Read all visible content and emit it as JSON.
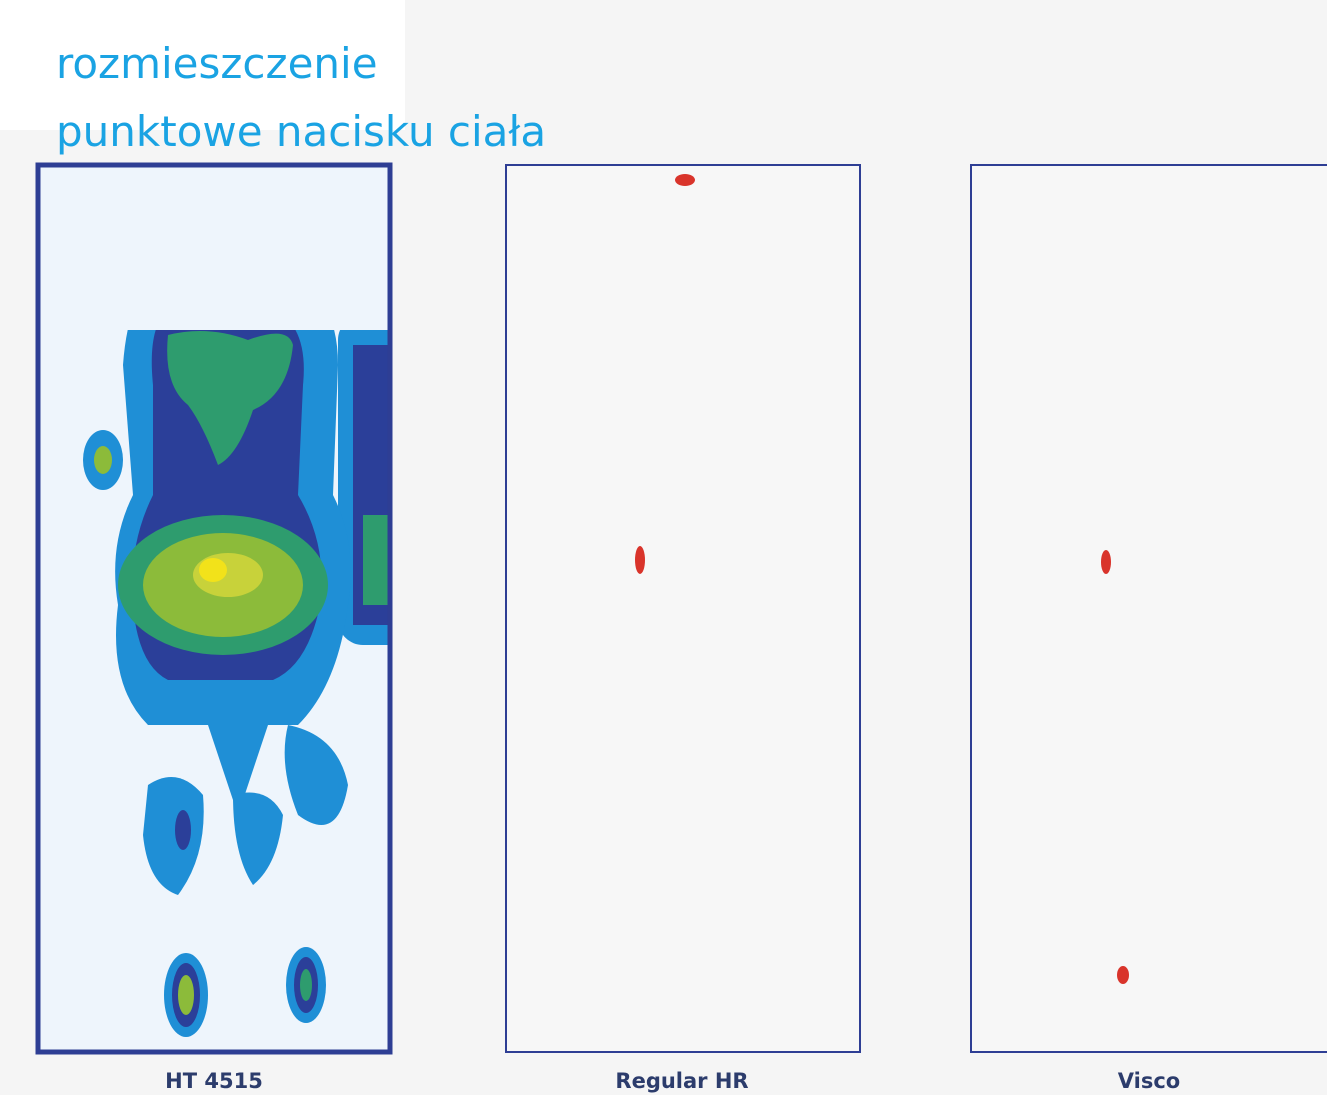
{
  "header": {
    "title_lines": [
      "rozmieszczenie",
      "punktowe nacisku ciała"
    ]
  },
  "panels": [
    {
      "label": "HT 4515"
    },
    {
      "label": "Regular HR"
    },
    {
      "label": "Visco"
    }
  ]
}
